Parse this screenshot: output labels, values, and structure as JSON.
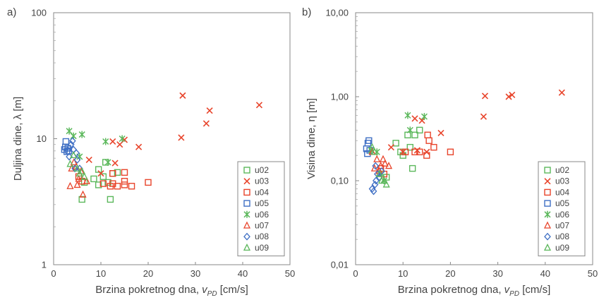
{
  "chart_data": [
    {
      "type": "scatter",
      "panel_label": "a)",
      "title": "",
      "xlabel": "Brzina pokretnog dna,",
      "xlabel_var": "v",
      "xlabel_sub": "PD",
      "xlabel_unit": " [cm/s]",
      "ylabel": "Duljina dine, λ [m]",
      "xlim": [
        0,
        50
      ],
      "ylim": [
        1,
        100
      ],
      "yscale": "log",
      "xticks": [
        "0",
        "10",
        "20",
        "30",
        "40",
        "50"
      ],
      "yticks": [
        {
          "v": 1,
          "label": "1"
        },
        {
          "v": 10,
          "label": "10"
        },
        {
          "v": 100,
          "label": "100"
        }
      ],
      "grid": false,
      "legend": "bottom-right",
      "series": [
        {
          "name": "u02",
          "marker": "square",
          "color": "#5cb85c",
          "points": [
            [
              6,
              3.3
            ],
            [
              6.5,
              4.5
            ],
            [
              8.5,
              4.8
            ],
            [
              9.5,
              4.3
            ],
            [
              9.5,
              5.7
            ],
            [
              10.5,
              5.0
            ],
            [
              11,
              6.5
            ],
            [
              11.5,
              4.5
            ],
            [
              12,
              3.3
            ],
            [
              12.5,
              5.3
            ],
            [
              13.5,
              5.4
            ]
          ]
        },
        {
          "name": "u03",
          "marker": "x",
          "color": "#e8452c",
          "points": [
            [
              7.5,
              6.8
            ],
            [
              10,
              5.3
            ],
            [
              12.5,
              9.5
            ],
            [
              13,
              6.4
            ],
            [
              14,
              9.0
            ],
            [
              15,
              9.8
            ],
            [
              18,
              8.6
            ],
            [
              27,
              10.2
            ],
            [
              27.3,
              22
            ],
            [
              32.3,
              13.2
            ],
            [
              33,
              16.7
            ],
            [
              43.5,
              18.5
            ]
          ]
        },
        {
          "name": "u04",
          "marker": "square",
          "color": "#e8452c",
          "points": [
            [
              5.3,
              5
            ],
            [
              6,
              4.6
            ],
            [
              10.5,
              4.4
            ],
            [
              12,
              4.2
            ],
            [
              12.5,
              4.4
            ],
            [
              12.5,
              5.3
            ],
            [
              13.5,
              4.2
            ],
            [
              15,
              4.3
            ],
            [
              15,
              4.6
            ],
            [
              15,
              5.4
            ],
            [
              16.5,
              4.2
            ],
            [
              20,
              4.5
            ]
          ]
        },
        {
          "name": "u05",
          "marker": "square",
          "color": "#3f6fc4",
          "points": [
            [
              2.3,
              8.2
            ],
            [
              2.5,
              8.6
            ],
            [
              2.6,
              9.5
            ],
            [
              2.8,
              7.9
            ],
            [
              3.0,
              8.4
            ],
            [
              3.2,
              8.0
            ]
          ]
        },
        {
          "name": "u06",
          "marker": "asterisk",
          "color": "#5cb85c",
          "points": [
            [
              3.3,
              11.5
            ],
            [
              4.2,
              10.5
            ],
            [
              5.5,
              7.2
            ],
            [
              6,
              10.8
            ],
            [
              11,
              9.5
            ],
            [
              11.5,
              6.5
            ],
            [
              14.5,
              10
            ]
          ]
        },
        {
          "name": "u07",
          "marker": "triangle",
          "color": "#e8452c",
          "points": [
            [
              3.5,
              4.2
            ],
            [
              3.8,
              5.8
            ],
            [
              4.3,
              6.5
            ],
            [
              4.8,
              6.0
            ],
            [
              5,
              4.3
            ],
            [
              5.3,
              4.8
            ],
            [
              5.8,
              5.5
            ],
            [
              6.2,
              3.6
            ],
            [
              7,
              4.6
            ]
          ]
        },
        {
          "name": "u08",
          "marker": "diamond",
          "color": "#3f6fc4",
          "points": [
            [
              3.3,
              7.2
            ],
            [
              3.7,
              9.0
            ],
            [
              4.0,
              9.6
            ],
            [
              4.2,
              8.2
            ],
            [
              4.5,
              5.8
            ],
            [
              4.8,
              7.7
            ],
            [
              5,
              6.8
            ],
            [
              5.5,
              5.8
            ]
          ]
        },
        {
          "name": "u09",
          "marker": "triangle",
          "color": "#5cb85c",
          "points": [
            [
              3.5,
              6.3
            ],
            [
              4.2,
              7.4
            ],
            [
              5,
              5.8
            ],
            [
              5.5,
              5.3
            ],
            [
              6,
              5.5
            ],
            [
              6.5,
              5.0
            ]
          ]
        }
      ]
    },
    {
      "type": "scatter",
      "panel_label": "b)",
      "title": "",
      "xlabel": "Brzina pokretnog dna,",
      "xlabel_var": "v",
      "xlabel_sub": "PD",
      "xlabel_unit": " [cm/s]",
      "ylabel": "Visina dine, η [m]",
      "xlim": [
        0,
        50
      ],
      "ylim": [
        0.01,
        10
      ],
      "yscale": "log",
      "xticks": [
        "0",
        "10",
        "20",
        "30",
        "40",
        "50"
      ],
      "yticks": [
        {
          "v": 0.01,
          "label": "0,01"
        },
        {
          "v": 0.1,
          "label": "0,10"
        },
        {
          "v": 1,
          "label": "1,00"
        },
        {
          "v": 10,
          "label": "10,00"
        }
      ],
      "grid": false,
      "legend": "bottom-right",
      "series": [
        {
          "name": "u02",
          "marker": "square",
          "color": "#5cb85c",
          "points": [
            [
              6.5,
              0.11
            ],
            [
              8.5,
              0.28
            ],
            [
              9.5,
              0.22
            ],
            [
              10,
              0.2
            ],
            [
              11,
              0.35
            ],
            [
              11.5,
              0.25
            ],
            [
              12,
              0.14
            ],
            [
              12.5,
              0.35
            ],
            [
              13.5,
              0.4
            ]
          ]
        },
        {
          "name": "u03",
          "marker": "x",
          "color": "#e8452c",
          "points": [
            [
              7.5,
              0.25
            ],
            [
              10,
              0.22
            ],
            [
              12.5,
              0.55
            ],
            [
              13,
              0.23
            ],
            [
              14,
              0.52
            ],
            [
              15,
              0.22
            ],
            [
              18,
              0.37
            ],
            [
              27,
              0.58
            ],
            [
              27.3,
              1.02
            ],
            [
              32.3,
              1.0
            ],
            [
              33,
              1.05
            ],
            [
              43.5,
              1.12
            ]
          ]
        },
        {
          "name": "u04",
          "marker": "square",
          "color": "#e8452c",
          "points": [
            [
              5.3,
              0.14
            ],
            [
              6,
              0.12
            ],
            [
              10.5,
              0.22
            ],
            [
              12.5,
              0.22
            ],
            [
              13.5,
              0.22
            ],
            [
              15,
              0.2
            ],
            [
              15.2,
              0.35
            ],
            [
              15.5,
              0.3
            ],
            [
              16.5,
              0.25
            ],
            [
              20,
              0.22
            ]
          ]
        },
        {
          "name": "u05",
          "marker": "square",
          "color": "#3f6fc4",
          "points": [
            [
              2.3,
              0.24
            ],
            [
              2.5,
              0.21
            ],
            [
              2.6,
              0.28
            ],
            [
              2.8,
              0.3
            ],
            [
              3.0,
              0.23
            ]
          ]
        },
        {
          "name": "u06",
          "marker": "asterisk",
          "color": "#5cb85c",
          "points": [
            [
              3.3,
              0.23
            ],
            [
              4.5,
              0.22
            ],
            [
              5.5,
              0.12
            ],
            [
              6,
              0.1
            ],
            [
              11,
              0.6
            ],
            [
              11.5,
              0.4
            ],
            [
              14.5,
              0.58
            ]
          ]
        },
        {
          "name": "u07",
          "marker": "triangle",
          "color": "#e8452c",
          "points": [
            [
              3.5,
              0.22
            ],
            [
              4,
              0.14
            ],
            [
              4.5,
              0.18
            ],
            [
              5,
              0.13
            ],
            [
              5.3,
              0.15
            ],
            [
              5.8,
              0.18
            ],
            [
              6.2,
              0.16
            ],
            [
              7,
              0.15
            ]
          ]
        },
        {
          "name": "u08",
          "marker": "diamond",
          "color": "#3f6fc4",
          "points": [
            [
              3.5,
              0.08
            ],
            [
              3.8,
              0.075
            ],
            [
              4.1,
              0.09
            ],
            [
              4.3,
              0.1
            ],
            [
              4.6,
              0.12
            ],
            [
              5,
              0.11
            ],
            [
              5.5,
              0.13
            ],
            [
              4.2,
              0.15
            ]
          ]
        },
        {
          "name": "u09",
          "marker": "triangle",
          "color": "#5cb85c",
          "points": [
            [
              3.5,
              0.25
            ],
            [
              4,
              0.22
            ],
            [
              5,
              0.12
            ],
            [
              5.5,
              0.1
            ],
            [
              6,
              0.1
            ],
            [
              6.5,
              0.09
            ]
          ]
        }
      ]
    }
  ]
}
